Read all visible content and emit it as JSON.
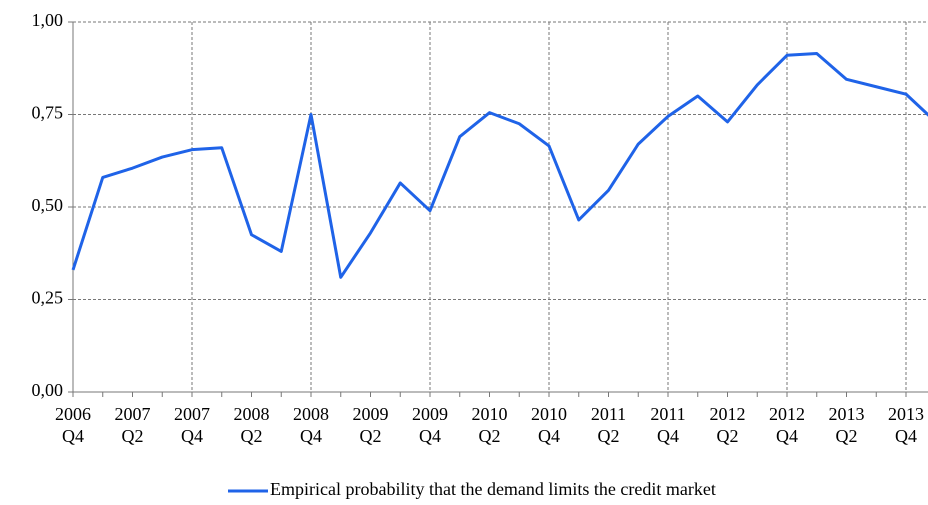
{
  "chart_data": {
    "type": "line",
    "categories": [
      "2006\nQ4",
      null,
      "2007\nQ2",
      null,
      "2007\nQ4",
      null,
      "2008\nQ2",
      null,
      "2008\nQ4",
      null,
      "2009\nQ2",
      null,
      "2009\nQ4",
      null,
      "2010\nQ2",
      null,
      "2010\nQ4",
      null,
      "2011\nQ2",
      null,
      "2011\nQ4",
      null,
      "2012\nQ2",
      null,
      "2012\nQ4",
      null,
      "2013\nQ2",
      null,
      "2013\nQ4",
      null
    ],
    "series": [
      {
        "name": "Empirical probability that the demand limits the credit market",
        "color": "#1f63e8",
        "values": [
          0.33,
          0.58,
          0.605,
          0.635,
          0.655,
          0.66,
          0.425,
          0.38,
          0.75,
          0.31,
          0.43,
          0.565,
          0.49,
          0.69,
          0.755,
          0.725,
          0.665,
          0.465,
          0.545,
          0.67,
          0.745,
          0.8,
          0.73,
          0.83,
          0.91,
          0.915,
          0.845,
          0.825,
          0.805,
          0.73
        ]
      }
    ],
    "ylim": [
      0,
      1
    ],
    "yticks": [
      {
        "value": 0,
        "label": "0,00"
      },
      {
        "value": 0.25,
        "label": "0,25"
      },
      {
        "value": 0.5,
        "label": "0,50"
      },
      {
        "value": 0.75,
        "label": "0,75"
      },
      {
        "value": 1,
        "label": "1,00"
      }
    ],
    "grid": true,
    "legend": "bottom"
  }
}
